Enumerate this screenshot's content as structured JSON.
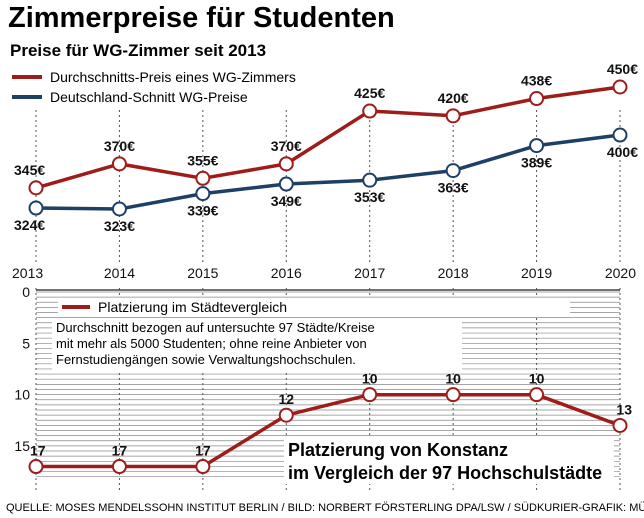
{
  "title": "Zimmerpreise für Studenten",
  "subtitle": "Preise für WG-Zimmer seit 2013",
  "colors": {
    "red": "#9e1d1b",
    "blue": "#1e3f66",
    "grid": "#555555"
  },
  "chart_data": [
    {
      "type": "line",
      "title": "Preise für WG-Zimmer seit 2013",
      "x": [
        "2013",
        "2014",
        "2015",
        "2016",
        "2017",
        "2018",
        "2019",
        "2020"
      ],
      "ylim": [
        300,
        470
      ],
      "series": [
        {
          "name": "Durchschnitts-Preis eines WG-Zimmers",
          "color": "#9e1d1b",
          "values": [
            345,
            370,
            355,
            370,
            425,
            420,
            438,
            450
          ],
          "labels": [
            "345€",
            "370€",
            "355€",
            "370€",
            "425€",
            "420€",
            "438€",
            "450€"
          ]
        },
        {
          "name": "Deutschland-Schnitt WG-Preise",
          "color": "#1e3f66",
          "values": [
            324,
            323,
            339,
            349,
            353,
            363,
            389,
            400
          ],
          "labels": [
            "324€",
            "323€",
            "339€",
            "349€",
            "353€",
            "363€",
            "389€",
            "400€"
          ]
        }
      ]
    },
    {
      "type": "line",
      "title": "Platzierung im Städtevergleich",
      "x": [
        "2013",
        "2014",
        "2015",
        "2016",
        "2017",
        "2018",
        "2019",
        "2020"
      ],
      "ylim": [
        0,
        18
      ],
      "y_inverted": true,
      "yticks": [
        "0",
        "5",
        "10",
        "15"
      ],
      "series": [
        {
          "name": "Platzierung im Städtevergleich",
          "color": "#9e1d1b",
          "values": [
            17,
            17,
            17,
            12,
            10,
            10,
            10,
            13
          ],
          "labels": [
            "17",
            "17",
            "17",
            "12",
            "10",
            "10",
            "10",
            "13"
          ]
        }
      ],
      "note": [
        "Durchschnitt bezogen auf untersuchte 97 Städte/Kreise",
        "mit mehr als 5000 Studenten; ohne reine Anbieter von",
        "Fernstudiengängen sowie Verwaltungshochschulen."
      ],
      "annotation": [
        "Platzierung von Konstanz",
        "im Vergleich der 97 Hochschulstädte"
      ]
    }
  ],
  "source": "QUELLE: MOSES MENDELSSOHN INSTITUT BERLIN / BILD: NORBERT FÖRSTERLING DPA/LSW / SÜDKURIER-GRAFIK: MÜLLER"
}
